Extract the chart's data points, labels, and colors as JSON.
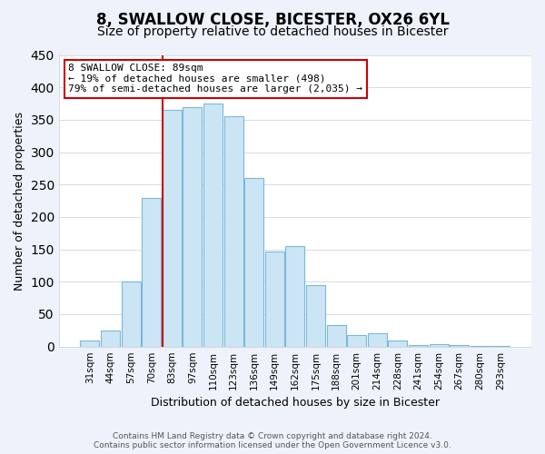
{
  "title": "8, SWALLOW CLOSE, BICESTER, OX26 6YL",
  "subtitle": "Size of property relative to detached houses in Bicester",
  "xlabel": "Distribution of detached houses by size in Bicester",
  "ylabel": "Number of detached properties",
  "categories": [
    "31sqm",
    "44sqm",
    "57sqm",
    "70sqm",
    "83sqm",
    "97sqm",
    "110sqm",
    "123sqm",
    "136sqm",
    "149sqm",
    "162sqm",
    "175sqm",
    "188sqm",
    "201sqm",
    "214sqm",
    "228sqm",
    "241sqm",
    "254sqm",
    "267sqm",
    "280sqm",
    "293sqm"
  ],
  "values": [
    10,
    25,
    100,
    230,
    365,
    370,
    375,
    355,
    260,
    147,
    155,
    95,
    33,
    18,
    20,
    10,
    3,
    4,
    2,
    1,
    1
  ],
  "bar_color": "#cce5f5",
  "bar_edge_color": "#7ab8d9",
  "highlight_bar_index": 4,
  "vline_color": "#cc0000",
  "ylim": [
    0,
    450
  ],
  "yticks": [
    0,
    50,
    100,
    150,
    200,
    250,
    300,
    350,
    400,
    450
  ],
  "annotation_title": "8 SWALLOW CLOSE: 89sqm",
  "annotation_line1": "← 19% of detached houses are smaller (498)",
  "annotation_line2": "79% of semi-detached houses are larger (2,035) →",
  "annotation_box_edge_color": "#cc0000",
  "footer_line1": "Contains HM Land Registry data © Crown copyright and database right 2024.",
  "footer_line2": "Contains public sector information licensed under the Open Government Licence v3.0.",
  "background_color": "#eef2fa",
  "plot_background_color": "#ffffff",
  "grid_color": "#d5dce8",
  "title_fontsize": 12,
  "subtitle_fontsize": 10,
  "tick_fontsize": 7.5,
  "ylabel_fontsize": 9,
  "xlabel_fontsize": 9
}
